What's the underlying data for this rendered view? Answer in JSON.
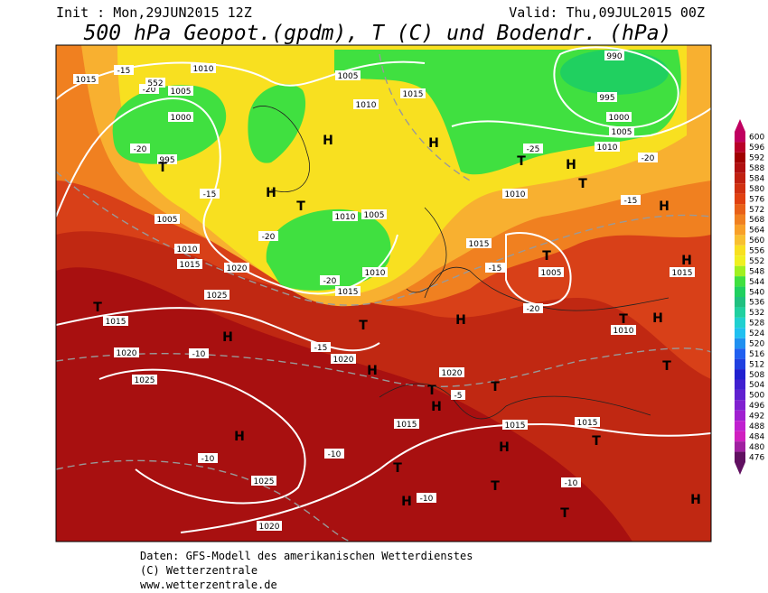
{
  "header": {
    "init": "Init : Mon,29JUN2015 12Z",
    "valid": "Valid: Thu,09JUL2015 00Z",
    "title": "500 hPa Geopot.(gpdm), T (C) und Bodendr. (hPa)"
  },
  "map": {
    "contour_labels": [
      "1015",
      "1010",
      "1005",
      "1000",
      "-15",
      "-20",
      "552",
      "-20",
      "995",
      "-15",
      "1005",
      "1010",
      "1015",
      "1020",
      "1025",
      "1015",
      "1020",
      "1025",
      "-10",
      "1005",
      "1010",
      "1015",
      "1005",
      "1010",
      "1010",
      "1015",
      "-20",
      "-20",
      "-15",
      "1020",
      "990",
      "995",
      "1000",
      "1005",
      "1010",
      "-25",
      "-20",
      "-15",
      "1010",
      "1015",
      "1005",
      "-15",
      "-20",
      "1010",
      "1015",
      "1015",
      "1015",
      "1015",
      "1025",
      "1020",
      "-10",
      "-10",
      "-10",
      "-10",
      "1020",
      "-5"
    ],
    "pressure_centers": [
      "H",
      "H",
      "T",
      "H",
      "T",
      "H",
      "T",
      "H",
      "T",
      "H",
      "T",
      "H",
      "T",
      "H",
      "H",
      "H",
      "T",
      "T",
      "H",
      "T",
      "T",
      "H",
      "H",
      "T",
      "T",
      "H",
      "T",
      "H",
      "T",
      "T"
    ]
  },
  "colorbar": {
    "levels": [
      600,
      596,
      592,
      588,
      584,
      580,
      576,
      572,
      568,
      564,
      560,
      556,
      552,
      548,
      544,
      540,
      536,
      532,
      528,
      524,
      520,
      516,
      512,
      508,
      504,
      500,
      496,
      492,
      488,
      484,
      480,
      476
    ],
    "colors": [
      "#c00060",
      "#b80028",
      "#a00000",
      "#b01010",
      "#c02010",
      "#d03010",
      "#e04010",
      "#e86018",
      "#f08020",
      "#f8a028",
      "#f8c030",
      "#f8e020",
      "#f0f020",
      "#a0f020",
      "#40e040",
      "#20d060",
      "#20c080",
      "#20d0a0",
      "#20d0d0",
      "#20c0f0",
      "#2090f0",
      "#2060f0",
      "#2040e0",
      "#2020d0",
      "#4020d0",
      "#6020d0",
      "#8020d0",
      "#a020d0",
      "#c020d0",
      "#d020c0",
      "#a020a0",
      "#601060"
    ]
  },
  "footer": {
    "lines": [
      "Daten: GFS-Modell des amerikanischen Wetterdienstes",
      "(C) Wetterzentrale",
      "www.wetterzentrale.de"
    ]
  }
}
